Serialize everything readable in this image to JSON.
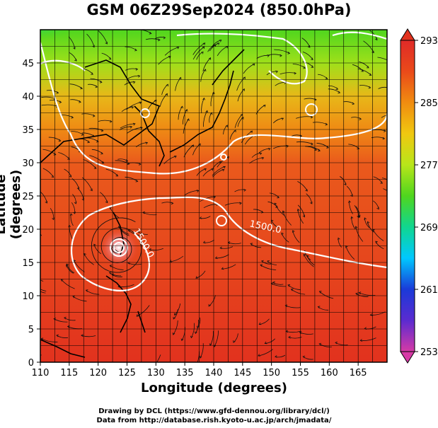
{
  "title": "GSM 06Z29Sep2024 (850.0hPa)",
  "xlabel": "Longitude (degrees)",
  "ylabel": "Latitude  (degrees)",
  "credits": {
    "line1": "Drawing by DCL (https://www.gfd-dennou.org/library/dcl/)",
    "line2": "Data from http://database.rish.kyoto-u.ac.jp/arch/jmadata/"
  },
  "chart_data": {
    "type": "heatmap",
    "title": "GSM 06Z29Sep2024 (850.0hPa)",
    "xlabel": "Longitude (degrees)",
    "ylabel": "Latitude  (degrees)",
    "xlim": [
      110,
      170
    ],
    "ylim": [
      0,
      50
    ],
    "x_ticks": [
      "110",
      "115",
      "120",
      "125",
      "130",
      "135",
      "140",
      "145",
      "150",
      "155",
      "160",
      "165"
    ],
    "y_ticks": [
      "0",
      "5",
      "10",
      "15",
      "20",
      "25",
      "30",
      "35",
      "40",
      "45"
    ],
    "colorbar": {
      "min": 253,
      "max": 293,
      "labels": [
        "293",
        "285",
        "277",
        "269",
        "261",
        "253"
      ],
      "colors": [
        "#d63aa6",
        "#5b2bd0",
        "#1a3ad8",
        "#00c8ff",
        "#10d690",
        "#4fd61e",
        "#b8e61a",
        "#f0c810",
        "#f08c10",
        "#ea4a1a",
        "#e02a28"
      ]
    },
    "contour_label": "1500.0",
    "contour_labels": [
      "1500.0",
      "1500.0"
    ],
    "grid": true,
    "features": [
      "streamlines",
      "temperature shading",
      "geopotential height contours",
      "coastlines"
    ]
  }
}
